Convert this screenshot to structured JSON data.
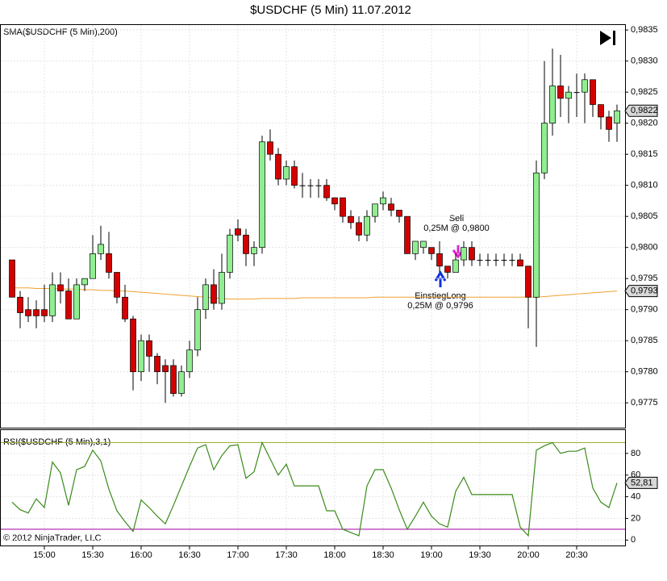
{
  "chart_data": [
    {
      "type": "candlestick",
      "title": "$USDCHF (5 Min)  11.07.2012",
      "up_color": "#90ee90",
      "down_color": "#d40000",
      "open": [
        0.9798,
        0.9792,
        0.979,
        0.979,
        0.979,
        0.9789,
        0.9794,
        0.9793,
        0.97885,
        0.9794,
        0.9795,
        0.9799,
        0.9799,
        0.9796,
        0.9792,
        0.97885,
        0.978,
        0.9785,
        0.97825,
        0.9781,
        0.9781,
        0.97765,
        0.978,
        0.97835,
        0.979,
        0.9794,
        0.9791,
        0.9796,
        0.9803,
        0.9802,
        0.9799,
        0.98,
        0.9817,
        0.9815,
        0.9811,
        0.9813,
        0.981,
        0.981,
        0.981,
        0.981,
        0.9808,
        0.9808,
        0.9805,
        0.9804,
        0.9802,
        0.9805,
        0.9807,
        0.9807,
        0.9806,
        0.9805,
        0.9799,
        0.98,
        0.98,
        0.9799,
        0.9797,
        0.9796,
        0.9798,
        0.98,
        0.9798,
        0.9798,
        0.9798,
        0.9798,
        0.9798,
        0.9798,
        0.9797,
        0.9792,
        0.9812,
        0.982,
        0.9826,
        0.9824,
        0.9825,
        0.9825,
        0.9827,
        0.9823,
        0.9821,
        0.982
      ],
      "high": [
        0.9798,
        0.9793,
        0.9792,
        0.97915,
        0.9794,
        0.9796,
        0.9796,
        0.9795,
        0.9795,
        0.9795,
        0.9802,
        0.98035,
        0.98025,
        0.9796,
        0.9794,
        0.9789,
        0.9786,
        0.9786,
        0.9783,
        0.9782,
        0.9782,
        0.9781,
        0.9785,
        0.9792,
        0.9795,
        0.97965,
        0.9799,
        0.9803,
        0.98045,
        0.9803,
        0.9801,
        0.9818,
        0.9819,
        0.9816,
        0.9814,
        0.9814,
        0.9812,
        0.9811,
        0.9811,
        0.9811,
        0.9808,
        0.9808,
        0.9806,
        0.9805,
        0.9806,
        0.9807,
        0.9809,
        0.9808,
        0.9806,
        0.9805,
        0.9801,
        0.9801,
        0.98,
        0.9801,
        0.9797,
        0.9799,
        0.9801,
        0.9801,
        0.9799,
        0.9799,
        0.9799,
        0.9799,
        0.9799,
        0.9799,
        0.9797,
        0.9814,
        0.983,
        0.9832,
        0.9831,
        0.9826,
        0.9828,
        0.9828,
        0.9827,
        0.9823,
        0.9822,
        0.9823
      ],
      "low": [
        0.9792,
        0.9787,
        0.9788,
        0.9787,
        0.9788,
        0.9788,
        0.9791,
        0.97885,
        0.97885,
        0.9793,
        0.9795,
        0.9798,
        0.9795,
        0.9791,
        0.9788,
        0.9777,
        0.97785,
        0.978,
        0.9778,
        0.9775,
        0.9776,
        0.9776,
        0.9779,
        0.97825,
        0.97885,
        0.979,
        0.979,
        0.9795,
        0.9801,
        0.9797,
        0.9797,
        0.9799,
        0.9814,
        0.981,
        0.981,
        0.98095,
        0.9808,
        0.9808,
        0.9808,
        0.98075,
        0.9806,
        0.9804,
        0.9803,
        0.9801,
        0.9801,
        0.9804,
        0.9806,
        0.9805,
        0.9804,
        0.9799,
        0.9798,
        0.9799,
        0.9798,
        0.9796,
        0.9795,
        0.9796,
        0.9797,
        0.9797,
        0.9797,
        0.9797,
        0.9797,
        0.9797,
        0.9797,
        0.9797,
        0.9787,
        0.9784,
        0.9811,
        0.9818,
        0.9821,
        0.982,
        0.9821,
        0.982,
        0.9821,
        0.9819,
        0.9817,
        0.9817
      ],
      "close": [
        0.9792,
        0.97895,
        0.9789,
        0.9789,
        0.9789,
        0.9794,
        0.9793,
        0.97885,
        0.9794,
        0.9795,
        0.9799,
        0.98005,
        0.9796,
        0.9792,
        0.97885,
        0.978,
        0.9785,
        0.97825,
        0.978,
        0.978,
        0.97765,
        0.978,
        0.97835,
        0.979,
        0.9794,
        0.9791,
        0.9796,
        0.9802,
        0.9802,
        0.9799,
        0.98,
        0.9817,
        0.9815,
        0.9811,
        0.9813,
        0.981,
        0.981,
        0.981,
        0.981,
        0.9808,
        0.9807,
        0.9805,
        0.9804,
        0.9802,
        0.9805,
        0.9807,
        0.9808,
        0.9806,
        0.9805,
        0.9799,
        0.9801,
        0.9801,
        0.9799,
        0.9797,
        0.9796,
        0.9798,
        0.98,
        0.9798,
        0.9798,
        0.9798,
        0.9798,
        0.9798,
        0.9798,
        0.9797,
        0.9792,
        0.9812,
        0.982,
        0.9826,
        0.9824,
        0.9825,
        0.9825,
        0.9827,
        0.9823,
        0.9821,
        0.9819,
        0.9822
      ],
      "series": [
        {
          "name": "SMA($USDCHF (5 Min),200)",
          "color": "#f0a030",
          "values": [
            0.97935,
            0.97935,
            0.97935,
            0.97934,
            0.97934,
            0.97934,
            0.97933,
            0.97933,
            0.97933,
            0.97932,
            0.97932,
            0.97931,
            0.97931,
            0.9793,
            0.9793,
            0.97929,
            0.97928,
            0.97927,
            0.97926,
            0.97925,
            0.97924,
            0.97923,
            0.97922,
            0.97921,
            0.9792,
            0.97919,
            0.97918,
            0.97917,
            0.97917,
            0.97917,
            0.97917,
            0.97918,
            0.97918,
            0.97918,
            0.97918,
            0.97918,
            0.97919,
            0.97919,
            0.97919,
            0.97919,
            0.97919,
            0.97919,
            0.97919,
            0.97919,
            0.97919,
            0.9792,
            0.9792,
            0.9792,
            0.9792,
            0.9792,
            0.9792,
            0.9792,
            0.9792,
            0.9792,
            0.9792,
            0.9792,
            0.9792,
            0.9792,
            0.9792,
            0.9792,
            0.9792,
            0.9792,
            0.9792,
            0.9792,
            0.9792,
            0.9792,
            0.97921,
            0.97922,
            0.97923,
            0.97924,
            0.97925,
            0.97926,
            0.97927,
            0.97928,
            0.97929,
            0.9793
          ]
        }
      ],
      "ylim": [
        0.9771,
        0.98358
      ],
      "yticks": [
        {
          "value": 0.9775,
          "label": "0,9775"
        },
        {
          "value": 0.978,
          "label": "0,9780"
        },
        {
          "value": 0.9785,
          "label": "0,9785"
        },
        {
          "value": 0.979,
          "label": "0,9790"
        },
        {
          "value": 0.9795,
          "label": "0,9795"
        },
        {
          "value": 0.98,
          "label": "0,9800"
        },
        {
          "value": 0.9805,
          "label": "0,9805"
        },
        {
          "value": 0.981,
          "label": "0,9810"
        },
        {
          "value": 0.9815,
          "label": "0,9815"
        },
        {
          "value": 0.982,
          "label": "0,9820"
        },
        {
          "value": 0.9825,
          "label": "0,9825"
        },
        {
          "value": 0.983,
          "label": "0,9830"
        },
        {
          "value": 0.9835,
          "label": "0,9835"
        }
      ],
      "badges": [
        {
          "value": 0.9822,
          "label": "0,9822"
        },
        {
          "value": 0.9793,
          "label": "0,9793"
        }
      ],
      "annotations": [
        {
          "label": "Sell",
          "detail": "0,25M @ 0,9800"
        },
        {
          "label": "EinstiegLong",
          "detail": "0,25M @ 0,9796"
        }
      ],
      "grid": true
    },
    {
      "type": "line",
      "title": "RSI($USDCHF (5 Min),3,1)",
      "categories": [
        null,
        null,
        null,
        null,
        "15:00",
        null,
        null,
        null,
        null,
        null,
        "15:30",
        null,
        null,
        null,
        null,
        null,
        "16:00",
        null,
        null,
        null,
        null,
        null,
        "16:30",
        null,
        null,
        null,
        null,
        null,
        "17:00",
        null,
        null,
        null,
        null,
        null,
        "17:30",
        null,
        null,
        null,
        null,
        null,
        "18:00",
        null,
        null,
        null,
        null,
        null,
        "18:30",
        null,
        null,
        null,
        null,
        null,
        "19:00",
        null,
        null,
        null,
        null,
        null,
        "19:30",
        null,
        null,
        null,
        null,
        null,
        "20:00",
        null,
        null,
        null,
        null,
        null,
        "20:30",
        null,
        null,
        null,
        null,
        null
      ],
      "series": [
        {
          "name": "RSI",
          "color": "#3a8a1a",
          "values": [
            35,
            28,
            25,
            38,
            30,
            72,
            62,
            32,
            65,
            68,
            83,
            73,
            47,
            27,
            17,
            8,
            37,
            30,
            22,
            15,
            32,
            50,
            68,
            85,
            88,
            65,
            78,
            87,
            88,
            57,
            63,
            90,
            75,
            60,
            70,
            50,
            50,
            50,
            50,
            27,
            27,
            10,
            7,
            4,
            50,
            65,
            65,
            48,
            28,
            10,
            22,
            35,
            22,
            15,
            12,
            45,
            58,
            42,
            42,
            42,
            42,
            42,
            42,
            12,
            4,
            83,
            87,
            90,
            80,
            82,
            82,
            85,
            48,
            35,
            30,
            52.81
          ]
        }
      ],
      "levels": [
        {
          "value": 90,
          "color": "#9ab030"
        },
        {
          "value": 10,
          "color": "#a000a0"
        }
      ],
      "ylim": [
        -5,
        101.5
      ],
      "yticks": [
        0,
        20,
        40,
        60,
        80
      ],
      "badges": [
        {
          "value": 52.81,
          "label": "52,81"
        }
      ],
      "grid": true
    }
  ],
  "copyright": "© 2012 NinjaTrader, LLC"
}
